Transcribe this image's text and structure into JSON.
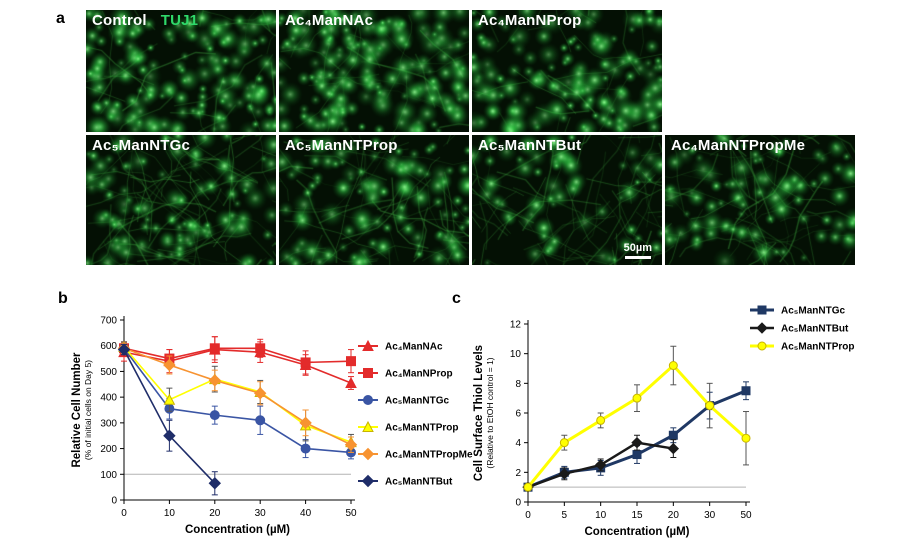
{
  "figure": {
    "panel_a": {
      "label": "a",
      "stain_label": "TUJ1",
      "scale_bar_label": "50µm",
      "tiles": [
        {
          "title": "Control"
        },
        {
          "title": "Ac₄ManNAc"
        },
        {
          "title": "Ac₄ManNProp"
        },
        {
          "title": "Ac₅ManNTGc"
        },
        {
          "title": "Ac₅ManNTProp"
        },
        {
          "title": "Ac₅ManNTBut"
        },
        {
          "title": "Ac₄ManNTPropMe"
        }
      ]
    },
    "panel_b_label": "b",
    "panel_c_label": "c"
  },
  "chart_data": [
    {
      "id": "panel-b",
      "type": "line",
      "title": "",
      "xlabel": "Concentration (µM)",
      "ylabel": "Relative Cell Number",
      "ylabel_sub": "(% of initial cells on Day 5)",
      "categories": [
        0,
        10,
        20,
        30,
        40,
        50
      ],
      "ylim": [
        0,
        700
      ],
      "ytick_step": 100,
      "reference_line": 100,
      "grid": false,
      "legend_position": "right",
      "series": [
        {
          "name": "Ac₄ManNAc",
          "color": "#e32b2b",
          "marker": "triangle",
          "lw": 1.6,
          "values": [
            575,
            540,
            585,
            575,
            525,
            455
          ],
          "errors": [
            35,
            45,
            50,
            40,
            40,
            25
          ]
        },
        {
          "name": "Ac₄ManNProp",
          "color": "#e32b2b",
          "marker": "square",
          "lw": 1.6,
          "values": [
            590,
            550,
            590,
            590,
            535,
            540
          ],
          "errors": [
            25,
            35,
            45,
            35,
            45,
            45
          ]
        },
        {
          "name": "Ac₅ManNTGc",
          "color": "#3a55a4",
          "marker": "circle",
          "lw": 1.6,
          "values": [
            590,
            355,
            330,
            310,
            200,
            185
          ],
          "errors": [
            20,
            40,
            35,
            55,
            35,
            25
          ]
        },
        {
          "name": "Ac₅ManNTProp",
          "color": "#ffff00",
          "marker": "triangle",
          "lw": 1.6,
          "mstroke": "#c8b400",
          "ecolor": "#555555",
          "values": [
            595,
            390,
            470,
            420,
            290,
            225
          ],
          "errors": [
            20,
            45,
            50,
            45,
            60,
            30
          ]
        },
        {
          "name": "Ac₄ManNTPropMe",
          "color": "#f79331",
          "marker": "diamond",
          "lw": 1.6,
          "values": [
            590,
            525,
            465,
            415,
            300,
            215
          ],
          "errors": [
            20,
            35,
            40,
            45,
            50,
            30
          ]
        },
        {
          "name": "Ac₅ManNTBut",
          "color": "#1f2d69",
          "marker": "diamond",
          "lw": 1.6,
          "values": [
            585,
            250,
            65,
            null,
            null,
            null
          ],
          "errors": [
            20,
            60,
            45,
            null,
            null,
            null
          ]
        }
      ]
    },
    {
      "id": "panel-c",
      "type": "line",
      "title": "",
      "xlabel": "Concentration (µM)",
      "ylabel": "Cell Surface Thiol Levels",
      "ylabel_sub": "(Relative to EtOH control = 1)",
      "categories": [
        0,
        5,
        10,
        15,
        20,
        30,
        50
      ],
      "ylim": [
        0,
        12
      ],
      "ytick_step": 2,
      "reference_line": 1,
      "grid": false,
      "legend_position": "top-right",
      "series": [
        {
          "name": "Ac₅ManNTGc",
          "color": "#1f3864",
          "marker": "square",
          "lw": 3,
          "values": [
            1,
            2,
            2.3,
            3.2,
            4.5,
            6.5,
            7.5
          ],
          "errors": [
            0.1,
            0.4,
            0.5,
            0.6,
            0.5,
            0.9,
            0.6
          ]
        },
        {
          "name": "Ac₅ManNTBut",
          "color": "#1a1a1a",
          "marker": "diamond",
          "lw": 2.4,
          "values": [
            1,
            1.9,
            2.5,
            4,
            3.6,
            null,
            null
          ],
          "errors": [
            0.1,
            0.4,
            0.4,
            0.5,
            0.6,
            null,
            null
          ]
        },
        {
          "name": "Ac₅ManNTProp",
          "color": "#ffff00",
          "marker": "circle",
          "lw": 3,
          "mstroke": "#c8b400",
          "ecolor": "#555555",
          "values": [
            1,
            4,
            5.5,
            7,
            9.2,
            6.5,
            4.3
          ],
          "errors": [
            0.1,
            0.5,
            0.5,
            0.9,
            1.3,
            1.5,
            1.8
          ]
        }
      ]
    }
  ]
}
